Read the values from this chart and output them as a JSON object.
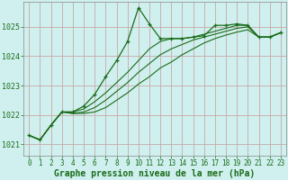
{
  "title": "Graphe pression niveau de la mer (hPa)",
  "background_color": "#cff0ee",
  "grid_color": "#c8a8a8",
  "line_color": "#1a6b1a",
  "ylim": [
    1020.6,
    1025.85
  ],
  "yticks": [
    1021,
    1022,
    1023,
    1024,
    1025
  ],
  "series": [
    [
      1021.3,
      1021.15,
      1021.65,
      1022.1,
      1022.1,
      1022.3,
      1022.7,
      1023.3,
      1023.85,
      1024.5,
      1025.65,
      1025.1,
      1024.6,
      1024.6,
      1024.6,
      1024.65,
      1024.7,
      1025.05,
      1025.05,
      1025.1,
      1025.05,
      1024.65,
      1024.65,
      1024.8
    ],
    [
      1021.3,
      1021.15,
      1021.65,
      1022.1,
      1022.1,
      1022.2,
      1022.45,
      1022.75,
      1023.1,
      1023.45,
      1023.85,
      1024.25,
      1024.5,
      1024.6,
      1024.6,
      1024.65,
      1024.75,
      1024.85,
      1024.95,
      1025.05,
      1025.05,
      1024.65,
      1024.65,
      1024.8
    ],
    [
      1021.3,
      1021.15,
      1021.65,
      1022.1,
      1022.05,
      1022.1,
      1022.25,
      1022.5,
      1022.8,
      1023.1,
      1023.45,
      1023.75,
      1024.05,
      1024.25,
      1024.4,
      1024.55,
      1024.65,
      1024.75,
      1024.85,
      1024.95,
      1025.0,
      1024.65,
      1024.65,
      1024.8
    ],
    [
      1021.3,
      1021.15,
      1021.65,
      1022.1,
      1022.05,
      1022.05,
      1022.1,
      1022.25,
      1022.5,
      1022.75,
      1023.05,
      1023.3,
      1023.6,
      1023.8,
      1024.05,
      1024.25,
      1024.45,
      1024.6,
      1024.72,
      1024.82,
      1024.9,
      1024.65,
      1024.65,
      1024.8
    ]
  ],
  "xlabel_fontsize": 5.5,
  "ylabel_fontsize": 6,
  "title_fontsize": 7,
  "figsize": [
    3.2,
    2.0
  ],
  "dpi": 100
}
